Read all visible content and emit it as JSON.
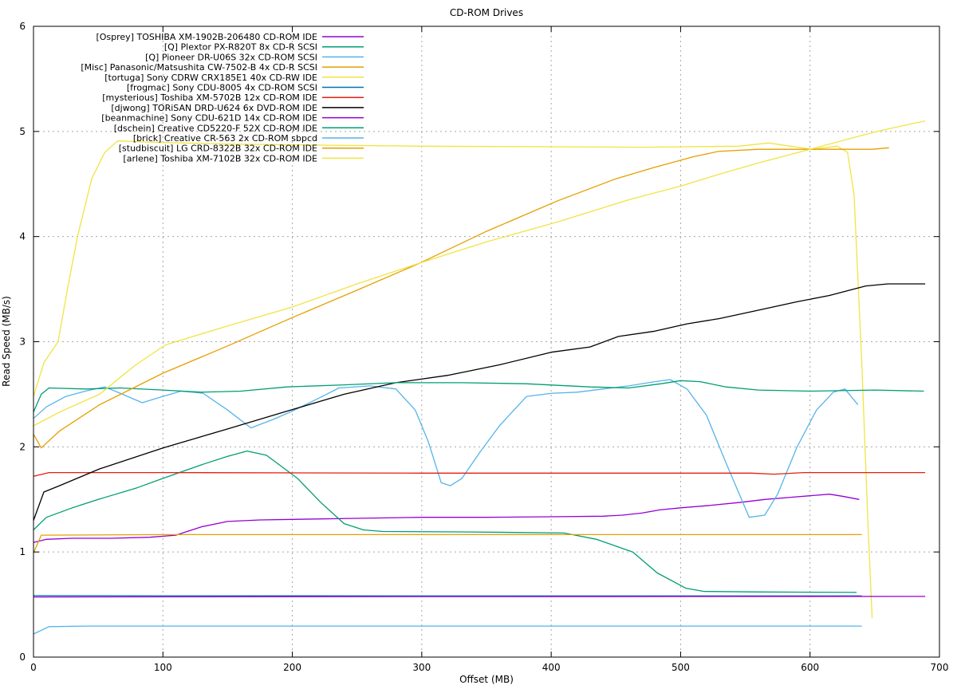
{
  "title": "CD-ROM Drives",
  "chart_data": {
    "type": "line",
    "title": "CD-ROM Drives",
    "xlabel": "Offset (MB)",
    "ylabel": "Read Speed (MB/s)",
    "xlim": [
      0,
      700
    ],
    "ylim": [
      0,
      6
    ],
    "xticks": [
      0,
      100,
      200,
      300,
      400,
      500,
      600,
      700
    ],
    "yticks": [
      0,
      1,
      2,
      3,
      4,
      5,
      6
    ],
    "grid": true,
    "grid_color": "#a8a8a8",
    "legend_position": "top-left-inside",
    "series": [
      {
        "name": "[Osprey] TOSHIBA XM-1902B-206480 CD-ROM IDE",
        "color": "#9400d3",
        "points": [
          [
            0,
            1.09
          ],
          [
            10,
            1.12
          ],
          [
            30,
            1.13
          ],
          [
            60,
            1.13
          ],
          [
            90,
            1.14
          ],
          [
            110,
            1.16
          ],
          [
            130,
            1.24
          ],
          [
            150,
            1.29
          ],
          [
            175,
            1.305
          ],
          [
            200,
            1.31
          ],
          [
            250,
            1.32
          ],
          [
            300,
            1.33
          ],
          [
            350,
            1.33
          ],
          [
            400,
            1.335
          ],
          [
            440,
            1.34
          ],
          [
            455,
            1.35
          ],
          [
            470,
            1.37
          ],
          [
            484,
            1.4
          ],
          [
            500,
            1.42
          ],
          [
            520,
            1.44
          ],
          [
            545,
            1.47
          ],
          [
            565,
            1.5
          ],
          [
            585,
            1.52
          ],
          [
            605,
            1.54
          ],
          [
            615,
            1.55
          ],
          [
            625,
            1.53
          ],
          [
            638,
            1.5
          ]
        ]
      },
      {
        "name": "[Q] Plextor PX-R820T 8x CD-R SCSI",
        "color": "#009e73",
        "points": [
          [
            0,
            1.21
          ],
          [
            10,
            1.33
          ],
          [
            30,
            1.42
          ],
          [
            50,
            1.5
          ],
          [
            80,
            1.61
          ],
          [
            100,
            1.7
          ],
          [
            130,
            1.83
          ],
          [
            150,
            1.91
          ],
          [
            165,
            1.96
          ],
          [
            180,
            1.92
          ],
          [
            204,
            1.7
          ],
          [
            222,
            1.47
          ],
          [
            240,
            1.27
          ],
          [
            255,
            1.21
          ],
          [
            270,
            1.195
          ],
          [
            340,
            1.19
          ],
          [
            410,
            1.18
          ],
          [
            435,
            1.12
          ],
          [
            463,
            1.0
          ],
          [
            482,
            0.8
          ],
          [
            504,
            0.655
          ],
          [
            518,
            0.625
          ],
          [
            560,
            0.62
          ],
          [
            636,
            0.615
          ]
        ]
      },
      {
        "name": "[Q] Pioneer DR-U06S 32x CD-ROM SCSI",
        "color": "#56b4e9",
        "points": [
          [
            0,
            2.27
          ],
          [
            10,
            2.38
          ],
          [
            25,
            2.48
          ],
          [
            40,
            2.53
          ],
          [
            55,
            2.57
          ],
          [
            67,
            2.51
          ],
          [
            84,
            2.42
          ],
          [
            100,
            2.48
          ],
          [
            114,
            2.53
          ],
          [
            131,
            2.51
          ],
          [
            150,
            2.35
          ],
          [
            168,
            2.18
          ],
          [
            185,
            2.26
          ],
          [
            200,
            2.34
          ],
          [
            220,
            2.46
          ],
          [
            236,
            2.56
          ],
          [
            260,
            2.58
          ],
          [
            280,
            2.55
          ],
          [
            295,
            2.35
          ],
          [
            305,
            2.05
          ],
          [
            315,
            1.66
          ],
          [
            322,
            1.63
          ],
          [
            331,
            1.7
          ],
          [
            345,
            1.95
          ],
          [
            360,
            2.2
          ],
          [
            381,
            2.48
          ],
          [
            401,
            2.51
          ],
          [
            420,
            2.52
          ],
          [
            440,
            2.55
          ],
          [
            460,
            2.58
          ],
          [
            480,
            2.62
          ],
          [
            492,
            2.64
          ],
          [
            505,
            2.55
          ],
          [
            520,
            2.3
          ],
          [
            535,
            1.85
          ],
          [
            553,
            1.33
          ],
          [
            565,
            1.35
          ],
          [
            575,
            1.55
          ],
          [
            590,
            2.0
          ],
          [
            605,
            2.35
          ],
          [
            618,
            2.52
          ],
          [
            627,
            2.55
          ],
          [
            637,
            2.4
          ]
        ]
      },
      {
        "name": "[Misc] Panasonic/Matsushita CW-7502-B 4x CD-R SCSI",
        "color": "#e69f00",
        "points": [
          [
            0,
            0.99
          ],
          [
            6,
            1.16
          ],
          [
            100,
            1.165
          ],
          [
            300,
            1.165
          ],
          [
            640,
            1.165
          ]
        ]
      },
      {
        "name": "[tortuga] Sony CDRW CRX185E1 40x CD-RW IDE",
        "color": "#f0e442",
        "points": [
          [
            0,
            2.48
          ],
          [
            8,
            2.8
          ],
          [
            19,
            3.0
          ],
          [
            27,
            3.55
          ],
          [
            34,
            4.0
          ],
          [
            45,
            4.55
          ],
          [
            55,
            4.8
          ],
          [
            65,
            4.91
          ],
          [
            85,
            4.9
          ],
          [
            150,
            4.88
          ],
          [
            300,
            4.86
          ],
          [
            470,
            4.85
          ],
          [
            545,
            4.86
          ],
          [
            568,
            4.89
          ],
          [
            585,
            4.86
          ],
          [
            601,
            4.83
          ],
          [
            621,
            4.86
          ],
          [
            629,
            4.8
          ],
          [
            634,
            4.4
          ],
          [
            640,
            2.8
          ],
          [
            645,
            1.2
          ],
          [
            648,
            0.37
          ]
        ]
      },
      {
        "name": "[frogmac] Sony CDU-8005 4x CD-ROM SCSI",
        "color": "#0072b2",
        "points": [
          [
            0,
            0.585
          ],
          [
            100,
            0.583
          ],
          [
            300,
            0.582
          ],
          [
            640,
            0.582
          ]
        ]
      },
      {
        "name": "[mysterious] Toshiba XM-5702B 12x CD-ROM IDE",
        "color": "#e51e10",
        "points": [
          [
            0,
            1.72
          ],
          [
            12,
            1.755
          ],
          [
            100,
            1.755
          ],
          [
            300,
            1.75
          ],
          [
            555,
            1.75
          ],
          [
            572,
            1.74
          ],
          [
            595,
            1.755
          ],
          [
            689,
            1.755
          ]
        ]
      },
      {
        "name": "[djwong] TORiSAN DRD-U624 6x DVD-ROM IDE",
        "color": "#000000",
        "points": [
          [
            0,
            1.3
          ],
          [
            8,
            1.57
          ],
          [
            20,
            1.63
          ],
          [
            51,
            1.79
          ],
          [
            100,
            1.99
          ],
          [
            150,
            2.17
          ],
          [
            196,
            2.34
          ],
          [
            240,
            2.5
          ],
          [
            280,
            2.61
          ],
          [
            320,
            2.68
          ],
          [
            360,
            2.78
          ],
          [
            400,
            2.9
          ],
          [
            430,
            2.95
          ],
          [
            452,
            3.05
          ],
          [
            480,
            3.1
          ],
          [
            505,
            3.17
          ],
          [
            530,
            3.22
          ],
          [
            560,
            3.3
          ],
          [
            590,
            3.38
          ],
          [
            615,
            3.44
          ],
          [
            643,
            3.53
          ],
          [
            660,
            3.55
          ],
          [
            689,
            3.55
          ]
        ]
      },
      {
        "name": "[beanmachine] Sony CDU-621D 14x CD-ROM IDE",
        "color": "#9400d3",
        "points": [
          [
            0,
            0.572
          ],
          [
            200,
            0.575
          ],
          [
            689,
            0.577
          ]
        ]
      },
      {
        "name": "[dschein] Creative CD5220-F 52X CD-ROM IDE",
        "color": "#009e73",
        "points": [
          [
            0,
            2.33
          ],
          [
            6,
            2.5
          ],
          [
            12,
            2.56
          ],
          [
            40,
            2.55
          ],
          [
            67,
            2.56
          ],
          [
            100,
            2.54
          ],
          [
            130,
            2.52
          ],
          [
            160,
            2.53
          ],
          [
            196,
            2.57
          ],
          [
            240,
            2.59
          ],
          [
            280,
            2.61
          ],
          [
            330,
            2.61
          ],
          [
            380,
            2.6
          ],
          [
            430,
            2.57
          ],
          [
            460,
            2.56
          ],
          [
            485,
            2.6
          ],
          [
            500,
            2.63
          ],
          [
            515,
            2.62
          ],
          [
            535,
            2.57
          ],
          [
            560,
            2.54
          ],
          [
            600,
            2.53
          ],
          [
            650,
            2.54
          ],
          [
            688,
            2.53
          ]
        ]
      },
      {
        "name": "[brick] Creative CR-563 2x CD-ROM sbpcd",
        "color": "#56b4e9",
        "points": [
          [
            0,
            0.22
          ],
          [
            12,
            0.29
          ],
          [
            40,
            0.295
          ],
          [
            300,
            0.295
          ],
          [
            640,
            0.295
          ]
        ]
      },
      {
        "name": "[studbiscuit] LG CRD-8322B 32x CD-ROM IDE",
        "color": "#e69f00",
        "points": [
          [
            0,
            2.12
          ],
          [
            6,
            1.99
          ],
          [
            20,
            2.15
          ],
          [
            51,
            2.4
          ],
          [
            100,
            2.7
          ],
          [
            150,
            2.96
          ],
          [
            200,
            3.23
          ],
          [
            250,
            3.49
          ],
          [
            299,
            3.75
          ],
          [
            350,
            4.05
          ],
          [
            405,
            4.34
          ],
          [
            450,
            4.55
          ],
          [
            480,
            4.66
          ],
          [
            510,
            4.76
          ],
          [
            529,
            4.81
          ],
          [
            560,
            4.83
          ],
          [
            620,
            4.83
          ],
          [
            648,
            4.83
          ],
          [
            661,
            4.845
          ]
        ]
      },
      {
        "name": "[arlene] Toshiba XM-7102B 32x CD-ROM IDE",
        "color": "#f0e442",
        "points": [
          [
            0,
            2.2
          ],
          [
            20,
            2.33
          ],
          [
            51,
            2.5
          ],
          [
            79,
            2.78
          ],
          [
            102,
            2.97
          ],
          [
            150,
            3.15
          ],
          [
            200,
            3.33
          ],
          [
            250,
            3.55
          ],
          [
            299,
            3.75
          ],
          [
            350,
            3.95
          ],
          [
            405,
            4.14
          ],
          [
            460,
            4.35
          ],
          [
            500,
            4.48
          ],
          [
            529,
            4.59
          ],
          [
            560,
            4.7
          ],
          [
            600,
            4.83
          ],
          [
            630,
            4.93
          ],
          [
            652,
            5.0
          ],
          [
            670,
            5.05
          ],
          [
            689,
            5.1
          ]
        ]
      }
    ]
  }
}
